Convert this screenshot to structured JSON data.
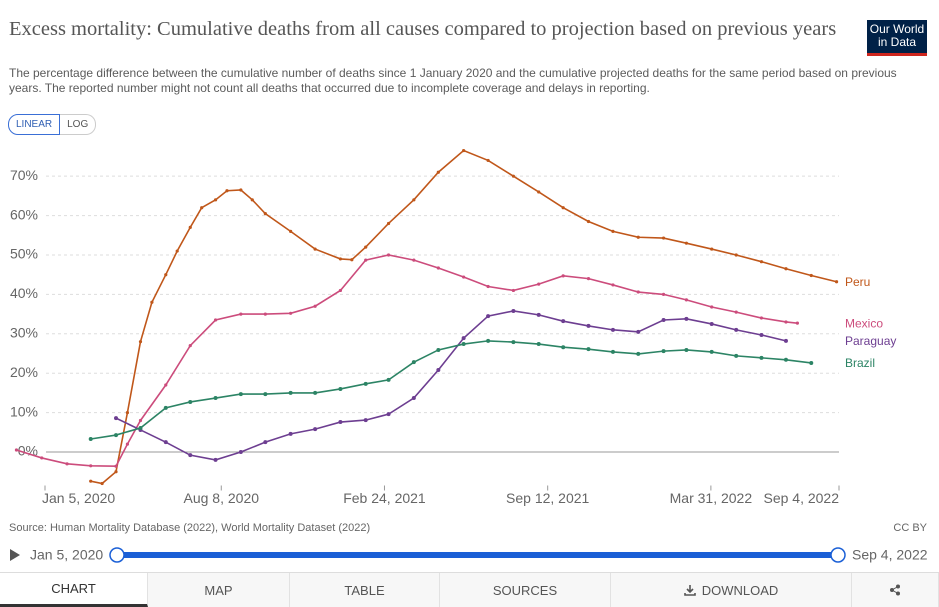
{
  "header": {
    "title": "Excess mortality: Cumulative deaths from all causes compared to projection based on previous years",
    "subtitle": "The percentage difference between the cumulative number of deaths since 1 January 2020 and the cumulative projected deaths for the same period based on previous years. The reported number might not count all deaths that occurred due to incomplete coverage and delays in reporting.",
    "logo": "Our World in Data"
  },
  "controls": {
    "scale_options": [
      "LINEAR",
      "LOG"
    ]
  },
  "chart_data": {
    "type": "line",
    "xlim": [
      "2019-11-28",
      "2022-09-04"
    ],
    "xticks": [
      {
        "value": "2020-01-05",
        "label": "Jan 5, 2020"
      },
      {
        "value": "2020-08-08",
        "label": "Aug 8, 2020"
      },
      {
        "value": "2021-02-24",
        "label": "Feb 24, 2021"
      },
      {
        "value": "2021-09-12",
        "label": "Sep 12, 2021"
      },
      {
        "value": "2022-03-31",
        "label": "Mar 31, 2022"
      },
      {
        "value": "2022-09-04",
        "label": "Sep 4, 2022"
      }
    ],
    "ylim": [
      -8.5,
      77
    ],
    "yticks": [
      {
        "value": 0,
        "label": "0%"
      },
      {
        "value": 10,
        "label": "10%"
      },
      {
        "value": 20,
        "label": "20%"
      },
      {
        "value": 30,
        "label": "30%"
      },
      {
        "value": 40,
        "label": "40%"
      },
      {
        "value": 50,
        "label": "50%"
      },
      {
        "value": 60,
        "label": "60%"
      },
      {
        "value": 70,
        "label": "70%"
      }
    ],
    "grid": true,
    "series": [
      {
        "name": "Peru",
        "color": "#c0571a",
        "x": [
          "2020-03-01",
          "2020-03-15",
          "2020-04-01",
          "2020-04-15",
          "2020-05-01",
          "2020-05-15",
          "2020-06-01",
          "2020-06-15",
          "2020-07-01",
          "2020-07-15",
          "2020-08-01",
          "2020-08-15",
          "2020-09-01",
          "2020-09-15",
          "2020-10-01",
          "2020-11-01",
          "2020-12-01",
          "2021-01-01",
          "2021-01-15",
          "2021-02-01",
          "2021-03-01",
          "2021-04-01",
          "2021-05-01",
          "2021-06-01",
          "2021-07-01",
          "2021-08-01",
          "2021-09-01",
          "2021-10-01",
          "2021-11-01",
          "2021-12-01",
          "2022-01-01",
          "2022-02-01",
          "2022-03-01",
          "2022-04-01",
          "2022-05-01",
          "2022-06-01",
          "2022-07-01",
          "2022-08-01",
          "2022-09-01"
        ],
        "values": [
          -7.4,
          -8,
          -5,
          10,
          28,
          38,
          45,
          51,
          57,
          62,
          64,
          66.3,
          66.5,
          64,
          60.5,
          56,
          51.5,
          49,
          48.8,
          52,
          58,
          64,
          71,
          76.5,
          74,
          70,
          66,
          62,
          58.5,
          56,
          54.5,
          54.3,
          53,
          51.5,
          50,
          48.3,
          46.5,
          44.8,
          43.2
        ]
      },
      {
        "name": "Mexico",
        "color": "#cc4c7c",
        "x": [
          "2019-12-01",
          "2020-01-01",
          "2020-02-01",
          "2020-03-01",
          "2020-04-01",
          "2020-04-15",
          "2020-05-01",
          "2020-06-01",
          "2020-07-01",
          "2020-08-01",
          "2020-09-01",
          "2020-10-01",
          "2020-11-01",
          "2020-12-01",
          "2021-01-01",
          "2021-02-01",
          "2021-03-01",
          "2021-04-01",
          "2021-05-01",
          "2021-06-01",
          "2021-07-01",
          "2021-08-01",
          "2021-09-01",
          "2021-10-01",
          "2021-11-01",
          "2021-12-01",
          "2022-01-01",
          "2022-02-01",
          "2022-03-01",
          "2022-04-01",
          "2022-05-01",
          "2022-06-01",
          "2022-07-01",
          "2022-07-15"
        ],
        "values": [
          0.5,
          -1.5,
          -3,
          -3.5,
          -3.6,
          2,
          8,
          17,
          27,
          33.5,
          35,
          35,
          35.2,
          37,
          41,
          48.7,
          50,
          48.7,
          46.7,
          44.4,
          42,
          41,
          42.6,
          44.7,
          44,
          42.4,
          40.6,
          40,
          38.6,
          36.8,
          35.5,
          34,
          33,
          32.7
        ]
      },
      {
        "name": "Paraguay",
        "color": "#6d3e91",
        "x": [
          "2020-04-01",
          "2020-05-01",
          "2020-06-01",
          "2020-07-01",
          "2020-08-01",
          "2020-09-01",
          "2020-10-01",
          "2020-11-01",
          "2020-12-01",
          "2021-01-01",
          "2021-02-01",
          "2021-03-01",
          "2021-04-01",
          "2021-05-01",
          "2021-06-01",
          "2021-07-01",
          "2021-08-01",
          "2021-09-01",
          "2021-10-01",
          "2021-11-01",
          "2021-12-01",
          "2022-01-01",
          "2022-02-01",
          "2022-03-01",
          "2022-04-01",
          "2022-05-01",
          "2022-06-01",
          "2022-07-01"
        ],
        "values": [
          8.6,
          5.6,
          2.5,
          -0.8,
          -2,
          0,
          2.5,
          4.6,
          5.8,
          7.6,
          8.1,
          9.6,
          13.7,
          20.8,
          28.9,
          34.5,
          35.8,
          34.8,
          33.2,
          32,
          31,
          30.5,
          33.5,
          33.8,
          32.5,
          31,
          29.7,
          28.2
        ]
      },
      {
        "name": "Brazil",
        "color": "#2c8465",
        "x": [
          "2020-03-01",
          "2020-04-01",
          "2020-05-01",
          "2020-06-01",
          "2020-07-01",
          "2020-08-01",
          "2020-09-01",
          "2020-10-01",
          "2020-11-01",
          "2020-12-01",
          "2021-01-01",
          "2021-02-01",
          "2021-03-01",
          "2021-04-01",
          "2021-05-01",
          "2021-06-01",
          "2021-07-01",
          "2021-08-01",
          "2021-09-01",
          "2021-10-01",
          "2021-11-01",
          "2021-12-01",
          "2022-01-01",
          "2022-02-01",
          "2022-03-01",
          "2022-04-01",
          "2022-05-01",
          "2022-06-01",
          "2022-07-01",
          "2022-08-01"
        ],
        "values": [
          3.3,
          4.3,
          6.1,
          11.2,
          12.7,
          13.7,
          14.7,
          14.7,
          15,
          15,
          16,
          17.3,
          18.3,
          22.8,
          25.9,
          27.4,
          28.2,
          27.9,
          27.4,
          26.6,
          26.1,
          25.4,
          24.9,
          25.6,
          25.9,
          25.4,
          24.4,
          23.9,
          23.4,
          22.6
        ]
      }
    ]
  },
  "footer": {
    "source": "Source: Human Mortality Database (2022), World Mortality Dataset (2022)",
    "license": "CC BY"
  },
  "timeline": {
    "start": "Jan 5, 2020",
    "end": "Sep 4, 2022"
  },
  "tabs": [
    "CHART",
    "MAP",
    "TABLE",
    "SOURCES",
    "DOWNLOAD"
  ]
}
